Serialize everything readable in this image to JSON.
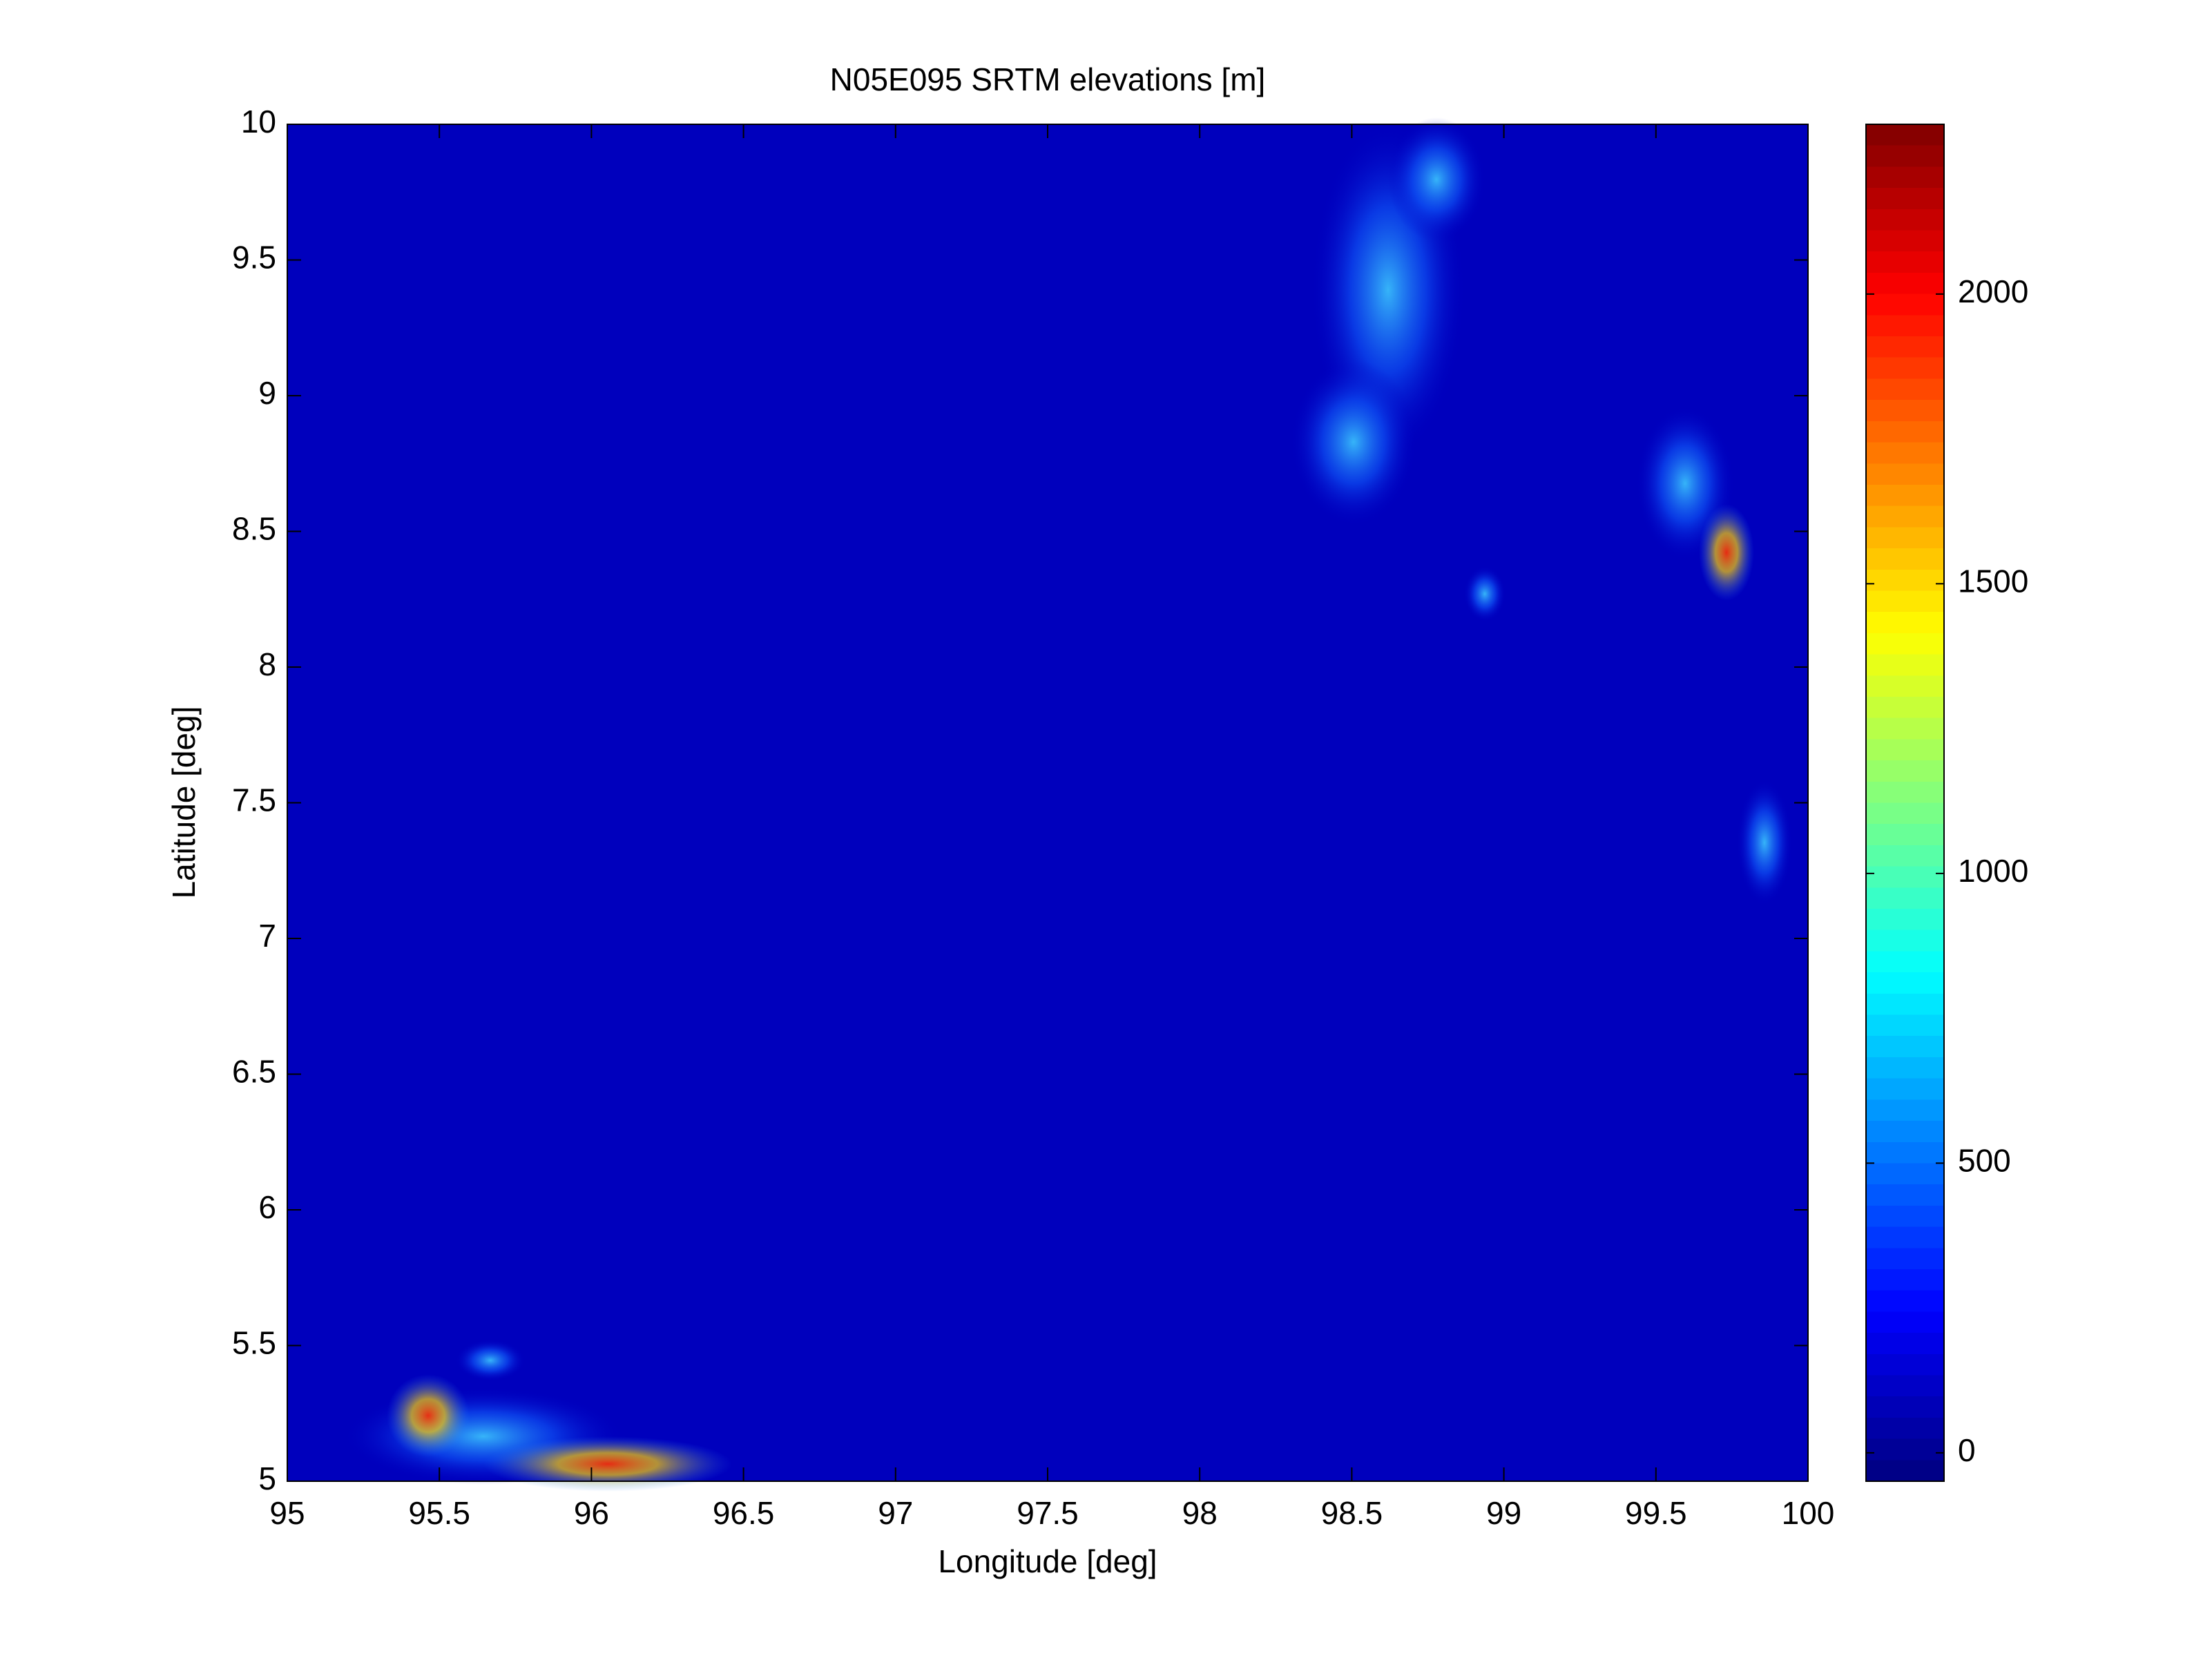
{
  "chart_data": {
    "type": "heatmap",
    "title": "N05E095 SRTM elevations [m]",
    "x_label": "Longitude [deg]",
    "y_label": "Latitude [deg]",
    "xlim": [
      95,
      100
    ],
    "xticks": [
      95,
      95.5,
      96,
      96.5,
      97,
      97.5,
      98,
      98.5,
      99,
      99.5,
      100
    ],
    "ylim": [
      5,
      10
    ],
    "yticks": [
      5,
      5.5,
      6,
      6.5,
      7,
      7.5,
      8,
      8.5,
      9,
      9.5,
      10
    ],
    "colormap": "jet",
    "clim": [
      -49,
      2293
    ],
    "cticks": [
      0,
      500,
      1000,
      1500,
      2000
    ]
  }
}
